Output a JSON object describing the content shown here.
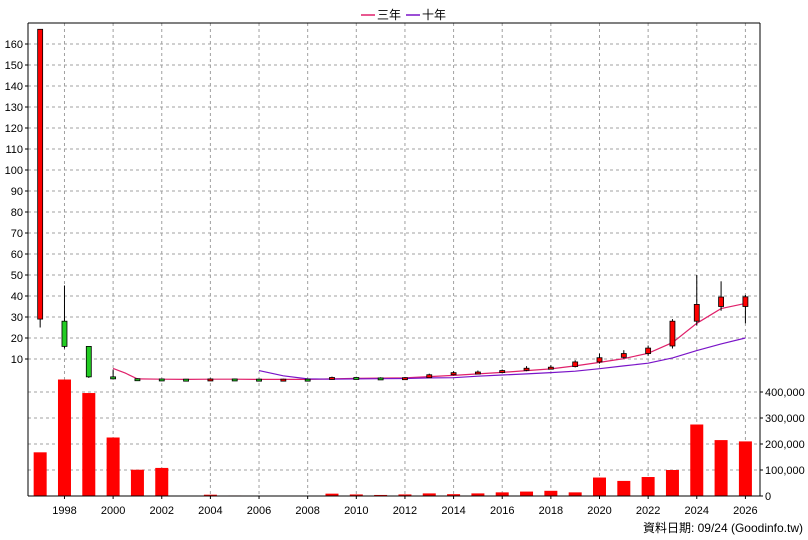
{
  "chart_data": {
    "type": "candlestick+bar",
    "legend": [
      {
        "name": "三年",
        "color": "#e0206a"
      },
      {
        "name": "十年",
        "color": "#7a14c8"
      }
    ],
    "legend_placement": "top-center",
    "grid": true,
    "price_axis": {
      "ticks": [
        10,
        20,
        30,
        40,
        50,
        60,
        70,
        80,
        90,
        100,
        110,
        120,
        130,
        140,
        150,
        160
      ],
      "range": [
        0,
        170
      ]
    },
    "volume_axis": {
      "ticks": [
        0,
        100000,
        200000,
        300000,
        400000
      ],
      "tick_labels": [
        "0",
        "100,000",
        "200,000",
        "300,000",
        "400,000"
      ],
      "range": [
        0,
        450000
      ]
    },
    "x_axis": {
      "range": [
        1996.5,
        2026.6
      ],
      "ticks": [
        1998,
        2000,
        2002,
        2004,
        2006,
        2008,
        2010,
        2012,
        2014,
        2016,
        2018,
        2020,
        2022,
        2024,
        2026
      ],
      "tick_labels": [
        "1998",
        "2000",
        "2002",
        "2004",
        "2006",
        "2008",
        "2010",
        "2012",
        "2014",
        "2016",
        "2018",
        "2020",
        "2022",
        "2024",
        "2026"
      ]
    },
    "candles": [
      {
        "year": 1997,
        "open": 29,
        "close": 167,
        "high": 167,
        "low": 25
      },
      {
        "year": 1998,
        "open": 28,
        "close": 16,
        "high": 45,
        "low": 15
      },
      {
        "year": 1999,
        "open": 16,
        "close": 1.5,
        "high": 16,
        "low": 1
      },
      {
        "year": 2000,
        "open": 1.5,
        "close": 1,
        "high": 5,
        "low": 0.5
      },
      {
        "year": 2001,
        "open": 0.6,
        "close": 0.5,
        "high": 0.8,
        "low": 0.4
      },
      {
        "year": 2002,
        "open": 0.5,
        "close": 0.4,
        "high": 0.7,
        "low": 0.3
      },
      {
        "year": 2003,
        "open": 0.4,
        "close": 0.3,
        "high": 0.5,
        "low": 0.2
      },
      {
        "year": 2004,
        "open": 0.3,
        "close": 0.5,
        "high": 0.8,
        "low": 0.2
      },
      {
        "year": 2005,
        "open": 0.5,
        "close": 0.4,
        "high": 0.7,
        "low": 0.3
      },
      {
        "year": 2006,
        "open": 0.4,
        "close": 0.3,
        "high": 0.6,
        "low": 0.2
      },
      {
        "year": 2007,
        "open": 0.3,
        "close": 0.4,
        "high": 0.6,
        "low": 0.2
      },
      {
        "year": 2008,
        "open": 0.4,
        "close": 0.3,
        "high": 0.6,
        "low": 0.2
      },
      {
        "year": 2009,
        "open": 0.5,
        "close": 1.2,
        "high": 1.6,
        "low": 0.4
      },
      {
        "year": 2010,
        "open": 1.2,
        "close": 1.0,
        "high": 1.5,
        "low": 0.8
      },
      {
        "year": 2011,
        "open": 1.0,
        "close": 0.8,
        "high": 1.3,
        "low": 0.6
      },
      {
        "year": 2012,
        "open": 0.8,
        "close": 1.1,
        "high": 1.4,
        "low": 0.6
      },
      {
        "year": 2013,
        "open": 1.1,
        "close": 2.5,
        "high": 3.0,
        "low": 1.0
      },
      {
        "year": 2014,
        "open": 2.5,
        "close": 3.5,
        "high": 4.2,
        "low": 2.2
      },
      {
        "year": 2015,
        "open": 3.5,
        "close": 3.8,
        "high": 4.5,
        "low": 3.0
      },
      {
        "year": 2016,
        "open": 3.8,
        "close": 4.5,
        "high": 5.0,
        "low": 3.4
      },
      {
        "year": 2017,
        "open": 4.6,
        "close": 5.6,
        "high": 6.6,
        "low": 4.2
      },
      {
        "year": 2018,
        "open": 5.6,
        "close": 6.1,
        "high": 7.0,
        "low": 5.1
      },
      {
        "year": 2019,
        "open": 6.4,
        "close": 8.6,
        "high": 9.4,
        "low": 6.0
      },
      {
        "year": 2020,
        "open": 8.6,
        "close": 10.6,
        "high": 12.6,
        "low": 7.8
      },
      {
        "year": 2021,
        "open": 10.8,
        "close": 12.6,
        "high": 14.2,
        "low": 10.2
      },
      {
        "year": 2022,
        "open": 12.6,
        "close": 15.2,
        "high": 16.4,
        "low": 11.6
      },
      {
        "year": 2023,
        "open": 16.2,
        "close": 28.0,
        "high": 29.0,
        "low": 15.0
      },
      {
        "year": 2024,
        "open": 28.0,
        "close": 36.0,
        "high": 50.0,
        "low": 26.0
      },
      {
        "year": 2025,
        "open": 35.0,
        "close": 39.5,
        "high": 47.0,
        "low": 33.0
      },
      {
        "year": 2026,
        "open": 35.0,
        "close": 39.6,
        "high": 40.5,
        "low": 27.0
      }
    ],
    "series": [
      {
        "name": "三年",
        "points": [
          [
            2000,
            5.5
          ],
          [
            2000.5,
            3.3
          ],
          [
            2001,
            0.5
          ],
          [
            2002,
            0.4
          ],
          [
            2003,
            0.3
          ],
          [
            2004,
            0.4
          ],
          [
            2005,
            0.4
          ],
          [
            2006,
            0.3
          ],
          [
            2007,
            0.3
          ],
          [
            2008,
            0.3
          ],
          [
            2009,
            0.5
          ],
          [
            2010,
            0.8
          ],
          [
            2011,
            0.9
          ],
          [
            2012,
            1.0
          ],
          [
            2013,
            1.6
          ],
          [
            2014,
            2.2
          ],
          [
            2015,
            2.9
          ],
          [
            2016,
            3.6
          ],
          [
            2017,
            4.5
          ],
          [
            2018,
            5.3
          ],
          [
            2019,
            6.7
          ],
          [
            2020,
            8.4
          ],
          [
            2021,
            10.2
          ],
          [
            2022,
            12.7
          ],
          [
            2023,
            17.8
          ],
          [
            2024,
            27.0
          ],
          [
            2025,
            34.0
          ],
          [
            2026,
            36.5
          ]
        ]
      },
      {
        "name": "十年",
        "points": [
          [
            2006,
            4.5
          ],
          [
            2007,
            2.0
          ],
          [
            2008,
            0.5
          ],
          [
            2009,
            0.4
          ],
          [
            2010,
            0.5
          ],
          [
            2011,
            0.6
          ],
          [
            2012,
            0.7
          ],
          [
            2013,
            1.0
          ],
          [
            2014,
            1.1
          ],
          [
            2015,
            1.8
          ],
          [
            2016,
            2.4
          ],
          [
            2017,
            2.9
          ],
          [
            2018,
            3.5
          ],
          [
            2019,
            4.2
          ],
          [
            2020,
            5.4
          ],
          [
            2021,
            6.7
          ],
          [
            2022,
            8.0
          ],
          [
            2023,
            10.5
          ],
          [
            2024,
            14.0
          ],
          [
            2025,
            17.2
          ],
          [
            2026,
            20.0
          ]
        ]
      }
    ],
    "volume": [
      {
        "year": 1997,
        "value": 168000
      },
      {
        "year": 1998,
        "value": 448000
      },
      {
        "year": 1999,
        "value": 396000
      },
      {
        "year": 2000,
        "value": 225000
      },
      {
        "year": 2001,
        "value": 101000
      },
      {
        "year": 2002,
        "value": 108000
      },
      {
        "year": 2003,
        "value": 1500
      },
      {
        "year": 2004,
        "value": 5000
      },
      {
        "year": 2005,
        "value": 2000
      },
      {
        "year": 2006,
        "value": 1000
      },
      {
        "year": 2007,
        "value": 800
      },
      {
        "year": 2008,
        "value": 600
      },
      {
        "year": 2009,
        "value": 9000
      },
      {
        "year": 2010,
        "value": 6000
      },
      {
        "year": 2011,
        "value": 4000
      },
      {
        "year": 2012,
        "value": 6000
      },
      {
        "year": 2013,
        "value": 10000
      },
      {
        "year": 2014,
        "value": 7000
      },
      {
        "year": 2015,
        "value": 10000
      },
      {
        "year": 2016,
        "value": 14000
      },
      {
        "year": 2017,
        "value": 17000
      },
      {
        "year": 2018,
        "value": 20000
      },
      {
        "year": 2019,
        "value": 14000
      },
      {
        "year": 2020,
        "value": 71000
      },
      {
        "year": 2021,
        "value": 58000
      },
      {
        "year": 2022,
        "value": 73000
      },
      {
        "year": 2023,
        "value": 100000
      },
      {
        "year": 2024,
        "value": 275000
      },
      {
        "year": 2025,
        "value": 215000
      },
      {
        "year": 2026,
        "value": 210000
      }
    ],
    "colors": {
      "up": "#ff0000",
      "down": "#22cc22",
      "volume": "#ff0000",
      "grid": "#a0a0a0",
      "axis": "#000000"
    }
  },
  "footer": {
    "text": "資料日期: 09/24  (Goodinfo.tw)"
  }
}
